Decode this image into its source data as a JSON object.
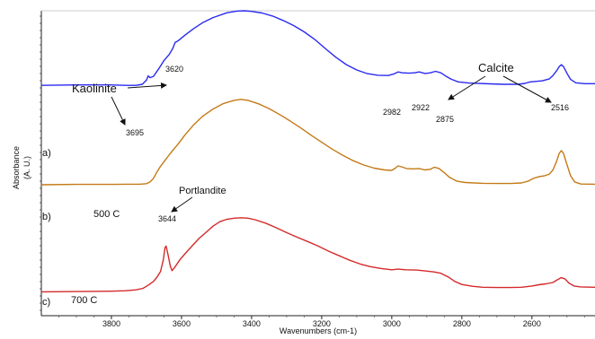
{
  "chart_data": {
    "type": "line",
    "title": "",
    "xlabel": "Wavenumbers (cm-1)",
    "ylabel_line1": "Absorbance",
    "ylabel_line2": "(A. U.)",
    "x_reversed": true,
    "xlim": [
      4000,
      2420
    ],
    "ylim": [
      0,
      1
    ],
    "xticks": [
      3800,
      3600,
      3400,
      3200,
      3000,
      2800,
      2600
    ],
    "grid": false,
    "legend": "none",
    "series": [
      {
        "name": "a)",
        "label": "a)",
        "color": "#2a2af0",
        "points": [
          [
            4000,
            0.505
          ],
          [
            3900,
            0.508
          ],
          [
            3800,
            0.508
          ],
          [
            3760,
            0.505
          ],
          [
            3730,
            0.505
          ],
          [
            3712,
            0.512
          ],
          [
            3700,
            0.54
          ],
          [
            3695,
            0.568
          ],
          [
            3690,
            0.556
          ],
          [
            3680,
            0.565
          ],
          [
            3665,
            0.615
          ],
          [
            3650,
            0.67
          ],
          [
            3635,
            0.71
          ],
          [
            3625,
            0.75
          ],
          [
            3618,
            0.79
          ],
          [
            3610,
            0.8
          ],
          [
            3590,
            0.838
          ],
          [
            3565,
            0.882
          ],
          [
            3540,
            0.92
          ],
          [
            3510,
            0.955
          ],
          [
            3470,
            0.987
          ],
          [
            3440,
            0.998
          ],
          [
            3420,
            1.0
          ],
          [
            3400,
            0.996
          ],
          [
            3370,
            0.985
          ],
          [
            3340,
            0.965
          ],
          [
            3310,
            0.936
          ],
          [
            3280,
            0.902
          ],
          [
            3250,
            0.86
          ],
          [
            3220,
            0.81
          ],
          [
            3190,
            0.75
          ],
          [
            3160,
            0.692
          ],
          [
            3130,
            0.643
          ],
          [
            3100,
            0.607
          ],
          [
            3070,
            0.583
          ],
          [
            3040,
            0.572
          ],
          [
            3010,
            0.57
          ],
          [
            2995,
            0.58
          ],
          [
            2982,
            0.594
          ],
          [
            2970,
            0.588
          ],
          [
            2950,
            0.586
          ],
          [
            2935,
            0.588
          ],
          [
            2922,
            0.594
          ],
          [
            2905,
            0.584
          ],
          [
            2890,
            0.588
          ],
          [
            2875,
            0.598
          ],
          [
            2860,
            0.588
          ],
          [
            2845,
            0.565
          ],
          [
            2830,
            0.545
          ],
          [
            2810,
            0.528
          ],
          [
            2780,
            0.52
          ],
          [
            2720,
            0.515
          ],
          [
            2680,
            0.512
          ],
          [
            2640,
            0.512
          ],
          [
            2620,
            0.518
          ],
          [
            2605,
            0.528
          ],
          [
            2590,
            0.531
          ],
          [
            2570,
            0.535
          ],
          [
            2550,
            0.548
          ],
          [
            2540,
            0.57
          ],
          [
            2530,
            0.6
          ],
          [
            2522,
            0.63
          ],
          [
            2516,
            0.642
          ],
          [
            2510,
            0.63
          ],
          [
            2500,
            0.585
          ],
          [
            2490,
            0.545
          ],
          [
            2475,
            0.522
          ],
          [
            2450,
            0.516
          ],
          [
            2420,
            0.516
          ]
        ]
      },
      {
        "name": "b)",
        "label": "b)",
        "color": "#c47a16",
        "points": [
          [
            4000,
            0.33
          ],
          [
            3900,
            0.332
          ],
          [
            3800,
            0.332
          ],
          [
            3760,
            0.333
          ],
          [
            3720,
            0.333
          ],
          [
            3700,
            0.336
          ],
          [
            3690,
            0.345
          ],
          [
            3680,
            0.365
          ],
          [
            3670,
            0.4
          ],
          [
            3660,
            0.43
          ],
          [
            3650,
            0.455
          ],
          [
            3630,
            0.505
          ],
          [
            3610,
            0.55
          ],
          [
            3590,
            0.6
          ],
          [
            3565,
            0.655
          ],
          [
            3540,
            0.7
          ],
          [
            3510,
            0.74
          ],
          [
            3480,
            0.77
          ],
          [
            3450,
            0.787
          ],
          [
            3430,
            0.792
          ],
          [
            3410,
            0.787
          ],
          [
            3380,
            0.768
          ],
          [
            3350,
            0.742
          ],
          [
            3320,
            0.71
          ],
          [
            3290,
            0.675
          ],
          [
            3260,
            0.638
          ],
          [
            3230,
            0.598
          ],
          [
            3200,
            0.56
          ],
          [
            3170,
            0.523
          ],
          [
            3140,
            0.49
          ],
          [
            3110,
            0.46
          ],
          [
            3080,
            0.437
          ],
          [
            3050,
            0.42
          ],
          [
            3020,
            0.41
          ],
          [
            3000,
            0.408
          ],
          [
            2990,
            0.42
          ],
          [
            2982,
            0.432
          ],
          [
            2972,
            0.427
          ],
          [
            2958,
            0.418
          ],
          [
            2940,
            0.416
          ],
          [
            2922,
            0.418
          ],
          [
            2905,
            0.41
          ],
          [
            2890,
            0.414
          ],
          [
            2878,
            0.425
          ],
          [
            2865,
            0.418
          ],
          [
            2850,
            0.395
          ],
          [
            2835,
            0.37
          ],
          [
            2815,
            0.35
          ],
          [
            2790,
            0.342
          ],
          [
            2740,
            0.338
          ],
          [
            2700,
            0.337
          ],
          [
            2660,
            0.337
          ],
          [
            2630,
            0.34
          ],
          [
            2610,
            0.35
          ],
          [
            2595,
            0.365
          ],
          [
            2580,
            0.374
          ],
          [
            2565,
            0.378
          ],
          [
            2550,
            0.388
          ],
          [
            2540,
            0.41
          ],
          [
            2530,
            0.455
          ],
          [
            2522,
            0.5
          ],
          [
            2516,
            0.515
          ],
          [
            2510,
            0.5
          ],
          [
            2500,
            0.44
          ],
          [
            2490,
            0.38
          ],
          [
            2478,
            0.345
          ],
          [
            2460,
            0.334
          ],
          [
            2420,
            0.333
          ]
        ]
      },
      {
        "name": "c)",
        "label": "c)",
        "color": "#d42a2a",
        "points": [
          [
            4000,
            0.062
          ],
          [
            3900,
            0.064
          ],
          [
            3800,
            0.066
          ],
          [
            3760,
            0.069
          ],
          [
            3730,
            0.075
          ],
          [
            3710,
            0.085
          ],
          [
            3700,
            0.098
          ],
          [
            3692,
            0.11
          ],
          [
            3680,
            0.13
          ],
          [
            3670,
            0.158
          ],
          [
            3660,
            0.195
          ],
          [
            3652,
            0.27
          ],
          [
            3647,
            0.35
          ],
          [
            3644,
            0.36
          ],
          [
            3638,
            0.3
          ],
          [
            3632,
            0.23
          ],
          [
            3627,
            0.2
          ],
          [
            3620,
            0.22
          ],
          [
            3605,
            0.27
          ],
          [
            3590,
            0.31
          ],
          [
            3570,
            0.36
          ],
          [
            3550,
            0.41
          ],
          [
            3530,
            0.45
          ],
          [
            3510,
            0.49
          ],
          [
            3490,
            0.52
          ],
          [
            3470,
            0.535
          ],
          [
            3450,
            0.542
          ],
          [
            3430,
            0.545
          ],
          [
            3410,
            0.542
          ],
          [
            3390,
            0.532
          ],
          [
            3360,
            0.51
          ],
          [
            3330,
            0.48
          ],
          [
            3300,
            0.448
          ],
          [
            3270,
            0.418
          ],
          [
            3240,
            0.39
          ],
          [
            3210,
            0.36
          ],
          [
            3180,
            0.327
          ],
          [
            3150,
            0.297
          ],
          [
            3120,
            0.268
          ],
          [
            3090,
            0.243
          ],
          [
            3060,
            0.226
          ],
          [
            3030,
            0.214
          ],
          [
            3000,
            0.206
          ],
          [
            2982,
            0.21
          ],
          [
            2960,
            0.206
          ],
          [
            2930,
            0.204
          ],
          [
            2905,
            0.198
          ],
          [
            2880,
            0.192
          ],
          [
            2860,
            0.183
          ],
          [
            2840,
            0.16
          ],
          [
            2820,
            0.13
          ],
          [
            2800,
            0.11
          ],
          [
            2770,
            0.098
          ],
          [
            2740,
            0.092
          ],
          [
            2700,
            0.09
          ],
          [
            2660,
            0.09
          ],
          [
            2630,
            0.092
          ],
          [
            2600,
            0.1
          ],
          [
            2580,
            0.108
          ],
          [
            2560,
            0.114
          ],
          [
            2540,
            0.123
          ],
          [
            2528,
            0.14
          ],
          [
            2516,
            0.155
          ],
          [
            2505,
            0.145
          ],
          [
            2495,
            0.12
          ],
          [
            2480,
            0.1
          ],
          [
            2460,
            0.094
          ],
          [
            2420,
            0.092
          ]
        ]
      }
    ],
    "annotations": {
      "peaks": [
        "3695",
        "3620",
        "2982",
        "2922",
        "2875",
        "2516",
        "3644"
      ],
      "kaolinite": "Kaolinite",
      "calcite": "Calcite",
      "portlandite": "Portlandite",
      "temp_500": "500 C",
      "temp_700": "700 C"
    }
  }
}
